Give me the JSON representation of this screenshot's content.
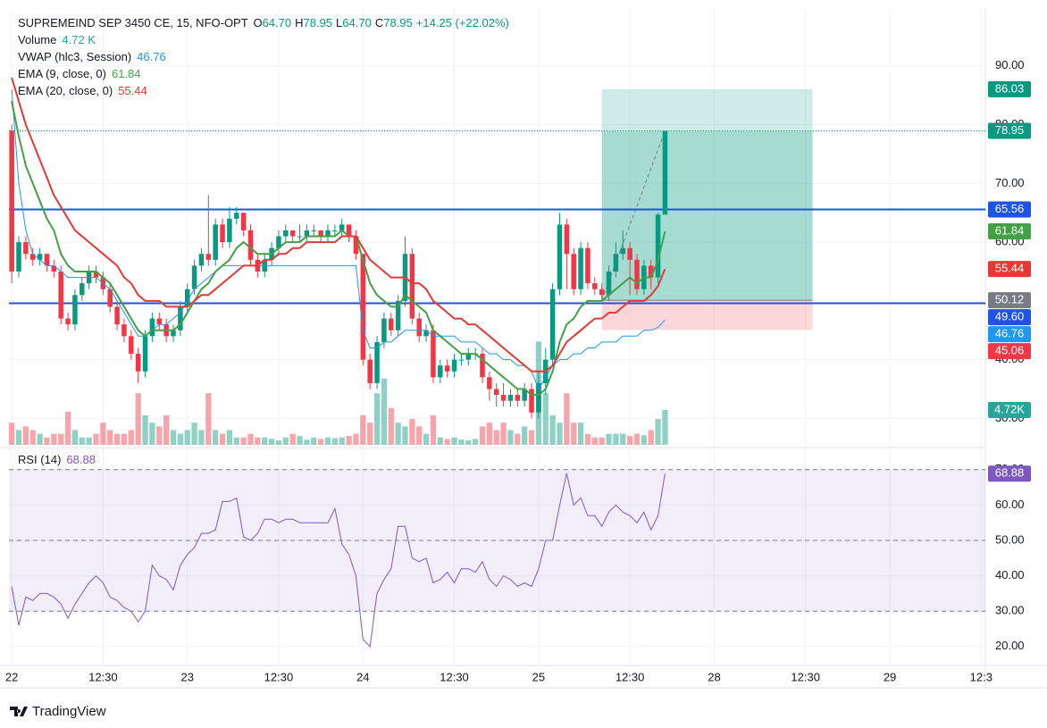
{
  "chart_data": {
    "type": "candlestick",
    "legend": {
      "symbol": "SUPREMEIND SEP 3450 CE, 15, NFO-OPT",
      "ohlc": [
        {
          "label": "O",
          "value": "64.70"
        },
        {
          "label": "H",
          "value": "78.95"
        },
        {
          "label": "L",
          "value": "64.70"
        },
        {
          "label": "C",
          "value": "78.95"
        }
      ],
      "change": "+14.25 (+22.02%)"
    },
    "indicators": [
      {
        "name": "Volume",
        "value": "4.72 K",
        "color": "#26a69a"
      },
      {
        "name": "VWAP (hlc3, Session)",
        "value": "46.76",
        "color": "#2196f3"
      },
      {
        "name": "EMA (9, close, 0)",
        "value": "61.84",
        "color": "#43a047"
      },
      {
        "name": "EMA (20, close, 0)",
        "value": "55.44",
        "color": "#e53935"
      }
    ],
    "up_color": "#089981",
    "down_color": "#f23645",
    "open": [
      79,
      55,
      60,
      58,
      57,
      58,
      56,
      55,
      47,
      46,
      51,
      53,
      55,
      54,
      52,
      49,
      46,
      44,
      41,
      38,
      44,
      47,
      46,
      44,
      45,
      49,
      52,
      56,
      58,
      57,
      63,
      60,
      64,
      65,
      62,
      57,
      55,
      57,
      59,
      61,
      62,
      61,
      61,
      62,
      62,
      61,
      62,
      62,
      63,
      61,
      58,
      40,
      36,
      43,
      47,
      45,
      50,
      58,
      47,
      44,
      45,
      37,
      39,
      38,
      40,
      40,
      41,
      41,
      37,
      35,
      34,
      33,
      34,
      33,
      35,
      31,
      36,
      40,
      52,
      63,
      58,
      52,
      59,
      53,
      52,
      51,
      55,
      58,
      59,
      57,
      52,
      56,
      54,
      64.7
    ],
    "high": [
      80,
      61,
      61,
      59,
      59,
      58,
      57,
      56,
      48,
      52,
      54,
      56,
      56,
      55,
      53,
      50,
      47,
      45,
      42,
      45,
      48,
      48,
      47,
      46,
      50,
      53,
      57,
      59,
      68,
      64,
      64,
      66,
      66,
      65,
      63,
      58,
      58,
      60,
      62,
      63,
      62,
      63,
      63,
      63,
      62,
      63,
      63,
      64,
      63,
      62,
      58,
      41,
      44,
      48,
      48,
      51,
      61,
      59,
      48,
      46,
      46,
      40,
      40,
      41,
      41,
      42,
      42,
      42,
      38,
      36,
      36,
      35,
      35,
      36,
      36,
      38,
      42,
      53,
      65,
      64,
      59,
      60,
      60,
      54,
      53,
      56,
      60,
      62,
      60,
      58,
      57,
      57,
      65,
      78.95
    ],
    "low": [
      53,
      54,
      57,
      56,
      56,
      55,
      54,
      46,
      45,
      45,
      50,
      52,
      53,
      51,
      48,
      45,
      43,
      40,
      36,
      37,
      43,
      45,
      43,
      43,
      44,
      48,
      51,
      55,
      56,
      56,
      59,
      59,
      63,
      61,
      56,
      54,
      54,
      56,
      58,
      60,
      60,
      60,
      60,
      61,
      60,
      60,
      61,
      61,
      60,
      57,
      39,
      35,
      35,
      42,
      44,
      44,
      49,
      46,
      43,
      43,
      36,
      36,
      37,
      37,
      39,
      39,
      40,
      36,
      33,
      32,
      32,
      32,
      32,
      32,
      30,
      30,
      34,
      39,
      51,
      52,
      51,
      51,
      52,
      51,
      50,
      50,
      54,
      57,
      51,
      51,
      51,
      52,
      53,
      64.7
    ],
    "close": [
      55,
      60,
      58,
      57,
      58,
      56,
      55,
      47,
      46,
      51,
      53,
      55,
      54,
      52,
      49,
      46,
      44,
      41,
      38,
      44,
      47,
      46,
      44,
      45,
      49,
      52,
      56,
      58,
      57,
      63,
      60,
      64,
      65,
      62,
      57,
      55,
      57,
      59,
      61,
      62,
      61,
      61,
      62,
      62,
      61,
      62,
      62,
      63,
      61,
      58,
      40,
      36,
      43,
      47,
      45,
      50,
      58,
      47,
      44,
      45,
      37,
      39,
      38,
      40,
      40,
      41,
      41,
      37,
      35,
      34,
      33,
      34,
      33,
      35,
      31,
      36,
      40,
      52,
      63,
      58,
      52,
      59,
      53,
      52,
      51,
      55,
      58,
      59,
      57,
      52,
      56,
      54,
      64.7,
      78.95
    ],
    "volume": [
      3,
      2,
      2.5,
      2,
      1.5,
      1,
      1.5,
      1.5,
      4.5,
      2,
      1,
      1,
      1.5,
      3,
      2,
      1.5,
      1.5,
      2,
      7,
      4,
      3,
      2.5,
      4,
      2,
      1.5,
      2,
      3,
      2,
      7,
      2,
      1.5,
      2,
      1,
      1,
      1.5,
      1,
      1,
      0.8,
      0.6,
      1,
      1.5,
      1.2,
      0.7,
      1,
      0.8,
      1,
      0.9,
      1,
      1.2,
      1.5,
      4,
      3,
      7,
      9,
      5,
      3,
      2.5,
      3.5,
      2.5,
      1.5,
      4,
      1,
      0.8,
      1,
      0.7,
      0.6,
      0.8,
      2.5,
      3,
      2,
      3,
      2,
      1.5,
      2.5,
      2,
      14,
      7,
      4,
      3,
      7,
      3,
      3,
      1.5,
      1,
      1,
      1.5,
      1.5,
      1.5,
      1.2,
      1.5,
      1.3,
      2,
      3.5,
      4.72
    ],
    "volume_label": "4.72K",
    "vwap": [
      86,
      70,
      62,
      58,
      57,
      56,
      56,
      55,
      54,
      54,
      54,
      54,
      54,
      53,
      52,
      50,
      48,
      46,
      44,
      44,
      45,
      46,
      46,
      47,
      48,
      50,
      52,
      53,
      54,
      55,
      56,
      56,
      56,
      56,
      56,
      56,
      56,
      56,
      56,
      56,
      56,
      56,
      56,
      56,
      56,
      56,
      56,
      56,
      56,
      56,
      45,
      42,
      42,
      43,
      43,
      44,
      45,
      45,
      45,
      45,
      44,
      44,
      44,
      44,
      43,
      43,
      43,
      42,
      41,
      41,
      40,
      40,
      39,
      39,
      38,
      35,
      37,
      39,
      40,
      40,
      41,
      41,
      42,
      42,
      43,
      43,
      43,
      44,
      44,
      44,
      45,
      45,
      45.5,
      46.76
    ],
    "ema9": [
      84,
      78,
      73,
      70,
      67,
      64,
      62,
      58,
      56,
      55,
      55,
      55,
      55,
      54,
      53,
      51,
      49,
      47,
      45,
      44,
      45,
      45,
      45,
      45,
      46,
      48,
      50,
      52,
      53,
      55,
      56,
      57,
      59,
      60,
      59,
      58,
      58,
      58,
      59,
      60,
      60,
      60,
      61,
      61,
      61,
      61,
      61,
      62,
      61,
      61,
      57,
      53,
      51,
      50,
      49,
      49,
      51,
      50,
      49,
      48,
      45,
      44,
      43,
      42,
      41,
      41,
      41,
      40,
      39,
      38,
      37,
      36,
      35,
      35,
      34,
      34,
      35,
      38,
      43,
      46,
      47,
      49,
      50,
      50,
      50,
      51,
      52,
      53,
      54,
      53,
      54,
      54,
      56.9,
      61.84
    ],
    "ema20": [
      88,
      84,
      80,
      77,
      74,
      71,
      68,
      66,
      64,
      62,
      61,
      60,
      59,
      58,
      57,
      56,
      54,
      53,
      51,
      50,
      50,
      50,
      49,
      49,
      49,
      49,
      50,
      51,
      51,
      52,
      53,
      54,
      55,
      56,
      56,
      56,
      57,
      57,
      58,
      58,
      59,
      59,
      60,
      60,
      60,
      60,
      60,
      61,
      61,
      61,
      59,
      57,
      56,
      55,
      54,
      54,
      54,
      53,
      53,
      52,
      50,
      49,
      48,
      47,
      47,
      46,
      46,
      45,
      44,
      43,
      42,
      41,
      40,
      39,
      38,
      38,
      38,
      39,
      41,
      43,
      44,
      45,
      46,
      47,
      47,
      48,
      48,
      49,
      50,
      50,
      50,
      51,
      52.5,
      55.44
    ],
    "vwap_color": "#2196f3",
    "ema9_color": "#43a047",
    "ema20_color": "#e53935",
    "xlim": [
      -0.4,
      138.6
    ],
    "xticks": [
      {
        "value": 0,
        "label": "22"
      },
      {
        "value": 13,
        "label": "12:30"
      },
      {
        "value": 25,
        "label": "23"
      },
      {
        "value": 38,
        "label": "12:30"
      },
      {
        "value": 50,
        "label": "24"
      },
      {
        "value": 63,
        "label": "12:30"
      },
      {
        "value": 75,
        "label": "25"
      },
      {
        "value": 88,
        "label": "12:30"
      },
      {
        "value": 100,
        "label": "28"
      },
      {
        "value": 113,
        "label": "12:30"
      },
      {
        "value": 125,
        "label": "29"
      },
      {
        "value": 138,
        "label": "12:3"
      }
    ],
    "ylim": [
      25.5,
      99.7
    ],
    "yticks": [
      {
        "value": 30,
        "label": "30.00"
      },
      {
        "value": 40,
        "label": "40.00"
      },
      {
        "value": 50,
        "label": "50.00"
      },
      {
        "value": 60,
        "label": "60.00"
      },
      {
        "value": 70,
        "label": "70.00"
      },
      {
        "value": 80,
        "label": "80.00"
      },
      {
        "value": 90,
        "label": "90.00"
      }
    ],
    "grid": true,
    "price_lines": [
      {
        "value": 65.56,
        "color": "#1e53e5"
      },
      {
        "value": 49.6,
        "color": "#1e53e5"
      }
    ],
    "position": {
      "start": 84,
      "end": 114,
      "target": 86.03,
      "entry": 50.12,
      "stop": 45.06
    },
    "axis_labels": [
      {
        "value": 86.03,
        "label": "86.03",
        "color": "#089981"
      },
      {
        "value": 78.95,
        "label": "78.95",
        "color": "#089981"
      },
      {
        "value": 65.56,
        "label": "65.56",
        "color": "#1e53e5"
      },
      {
        "value": 61.84,
        "label": "61.84",
        "color": "#43a047"
      },
      {
        "value": 55.44,
        "label": "55.44",
        "color": "#e53935"
      },
      {
        "value": 50.12,
        "label": "50.12",
        "color": "#787b86"
      },
      {
        "value": 49.6,
        "label": "49.60",
        "color": "#1e53e5"
      },
      {
        "value": 46.76,
        "label": "46.76",
        "color": "#2196f3"
      },
      {
        "value": 45.06,
        "label": "45.06",
        "color": "#f23645"
      }
    ]
  },
  "rsi": {
    "name": "RSI (14)",
    "value_label": "68.88",
    "color": "#7e57c2",
    "values": [
      37,
      26,
      34,
      33,
      35,
      35,
      34,
      32,
      28,
      32,
      35,
      38,
      40,
      38,
      34,
      33,
      31,
      30,
      27,
      30,
      43,
      40,
      39,
      36,
      43,
      46,
      48,
      52,
      52,
      53,
      61,
      61,
      62,
      51,
      50,
      52,
      56,
      56,
      55,
      56,
      56,
      55,
      55,
      55,
      55,
      55,
      59,
      49,
      46,
      40,
      22,
      20,
      35,
      39,
      42,
      54,
      54,
      45,
      44,
      45,
      38,
      39,
      41,
      38,
      42,
      42,
      41,
      44,
      39,
      37,
      40,
      39,
      37,
      38,
      37,
      42,
      50,
      50,
      60,
      69,
      60,
      62,
      57,
      57,
      54,
      58,
      60,
      58,
      57,
      55,
      58,
      53,
      57,
      68.88
    ],
    "ylim": [
      14.65,
      75.25
    ],
    "yticks": [
      {
        "value": 20,
        "label": "20.00"
      },
      {
        "value": 30,
        "label": "30.00"
      },
      {
        "value": 40,
        "label": "40.00"
      },
      {
        "value": 50,
        "label": "50.00"
      },
      {
        "value": 60,
        "label": "60.00"
      },
      {
        "value": 70,
        "label": "70.00"
      }
    ],
    "bands": [
      70,
      50,
      30
    ]
  },
  "footer": "TradingView"
}
